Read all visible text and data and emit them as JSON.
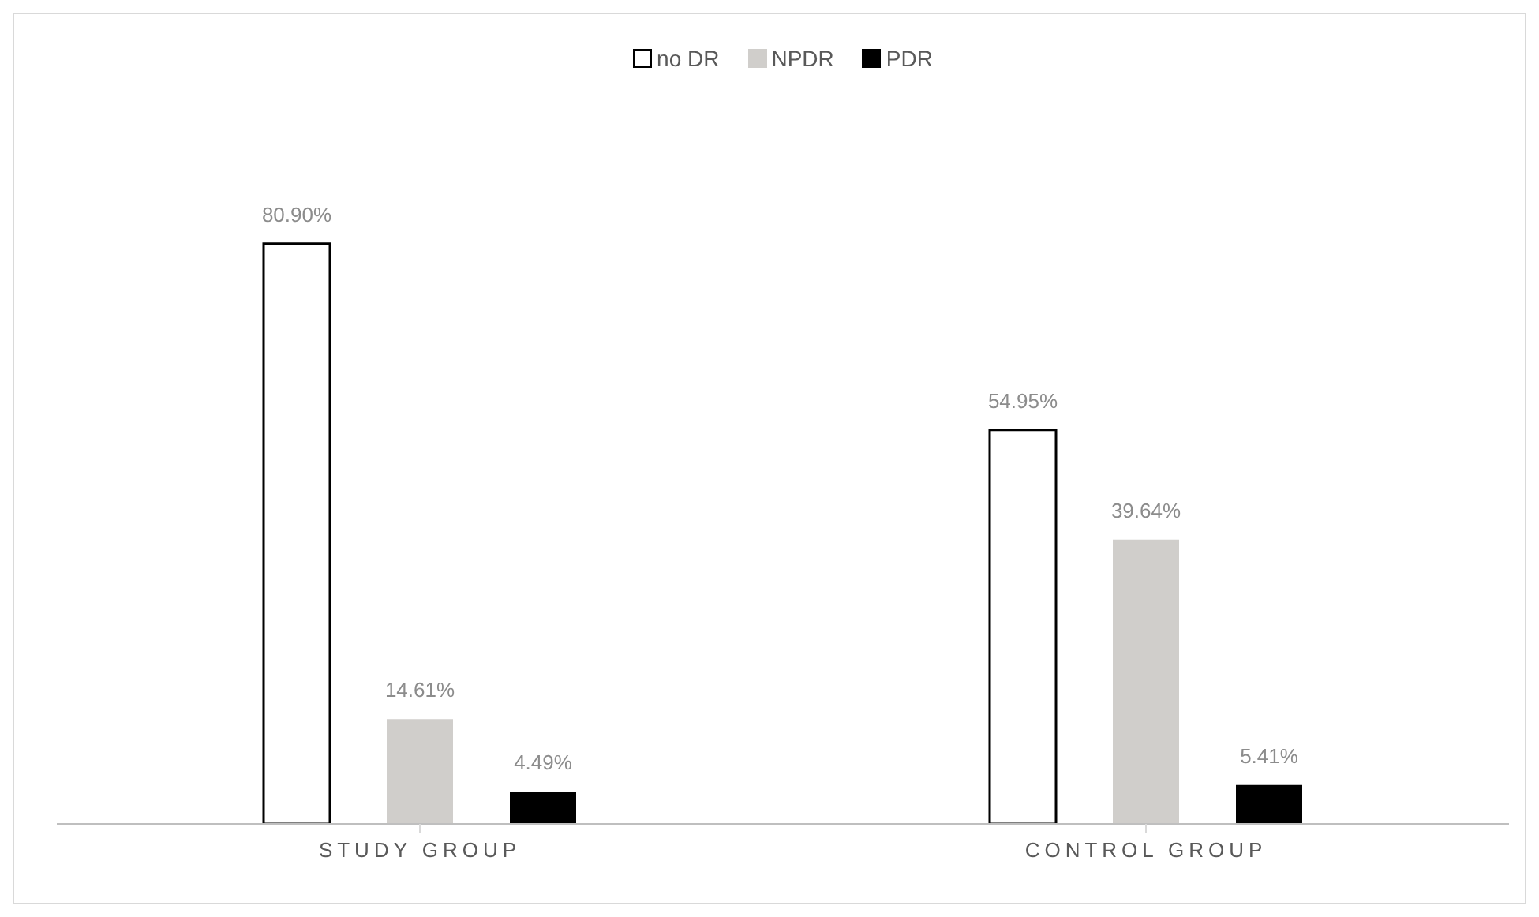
{
  "chart_data": {
    "type": "bar",
    "categories": [
      "STUDY GROUP",
      "CONTROL GROUP"
    ],
    "series": [
      {
        "name": "no DR",
        "color": "#ffffff",
        "values": [
          80.9,
          54.95
        ],
        "value_labels": [
          "80.90%",
          "54.95%"
        ]
      },
      {
        "name": "NPDR",
        "color": "#d0cecb",
        "values": [
          14.61,
          39.64
        ],
        "value_labels": [
          "14.61%",
          "39.64%"
        ]
      },
      {
        "name": "PDR",
        "color": "#000000",
        "values": [
          4.49,
          5.41
        ],
        "value_labels": [
          "4.49%",
          "5.41%"
        ]
      }
    ],
    "legend": "top",
    "grid": false
  }
}
